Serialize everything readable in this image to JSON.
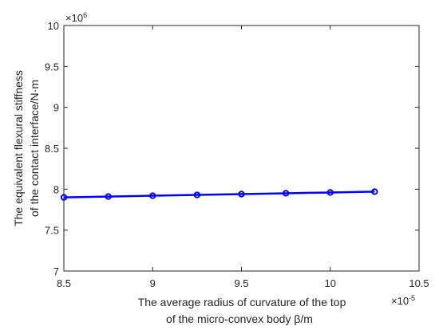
{
  "chart_data": {
    "type": "line",
    "x": [
      8.5,
      8.75,
      9.0,
      9.25,
      9.5,
      9.75,
      10.0,
      10.25
    ],
    "series": [
      {
        "values": [
          7.9,
          7.91,
          7.92,
          7.93,
          7.94,
          7.95,
          7.96,
          7.97
        ],
        "color": "#0000ff",
        "marker": "circle"
      }
    ],
    "xlim": [
      8.5,
      10.5
    ],
    "ylim": [
      7,
      10
    ],
    "xticks": [
      8.5,
      9,
      9.5,
      10,
      10.5
    ],
    "yticks": [
      7,
      7.5,
      8,
      8.5,
      9,
      9.5,
      10
    ],
    "xtick_labels": [
      "8.5",
      "9",
      "9.5",
      "10",
      "10.5"
    ],
    "ytick_labels": [
      "7",
      "7.5",
      "8",
      "8.5",
      "9",
      "9.5",
      "10"
    ],
    "x_exponent": "×10",
    "x_exponent_power": "-5",
    "y_exponent": "×10",
    "y_exponent_power": "6",
    "xlabel_lines": [
      "The average radius of curvature of the top",
      "of the micro-convex body β/m"
    ],
    "ylabel_lines": [
      "The equivalent flexural stiffness",
      "of the contact interface/N·m"
    ],
    "grid": false,
    "legend": false
  }
}
